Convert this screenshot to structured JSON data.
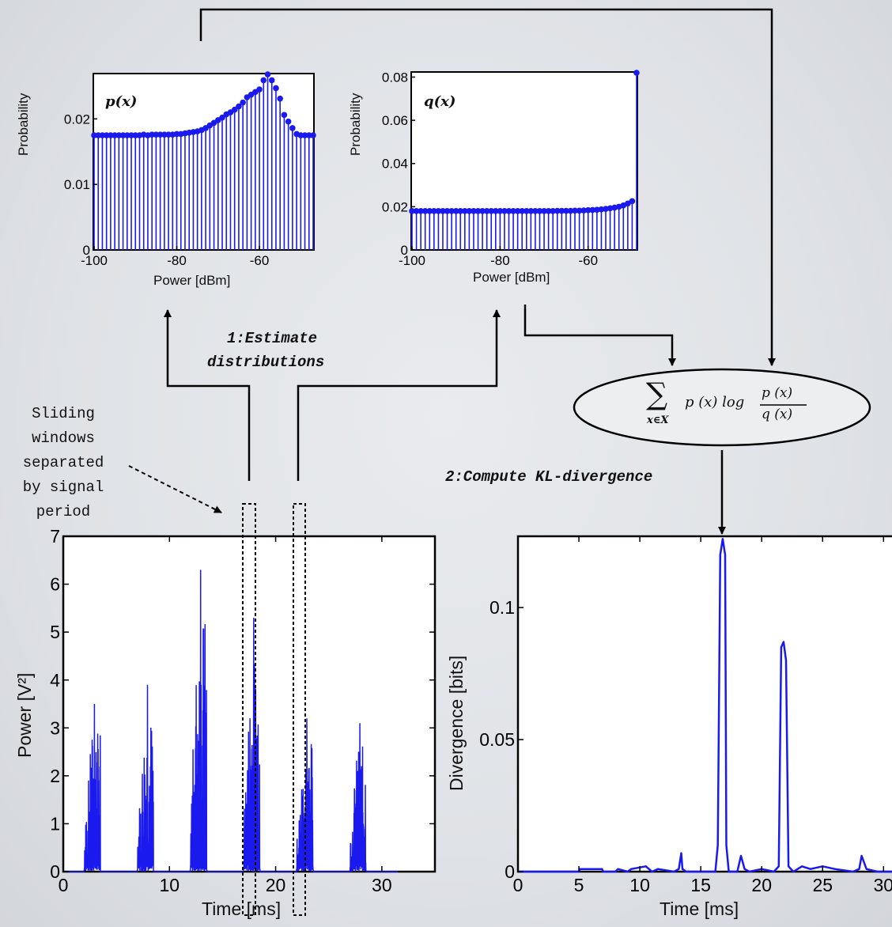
{
  "pdist": {
    "series_label": "p(x)",
    "ylabel": "Probability",
    "xlabel": "Power [dBm]",
    "xticks": [
      "-100",
      "-80",
      "-60"
    ],
    "yticks": [
      "0",
      "0.01",
      "0.02"
    ]
  },
  "qdist": {
    "series_label": "q(x)",
    "ylabel": "Probability",
    "xlabel": "Power [dBm]",
    "xticks": [
      "-100",
      "-80",
      "-60"
    ],
    "yticks": [
      "0",
      "0.02",
      "0.04",
      "0.06",
      "0.08"
    ]
  },
  "signal": {
    "ylabel": "Power [V²]",
    "xlabel": "Time [ms]",
    "xticks": [
      "0",
      "10",
      "20",
      "30"
    ],
    "yticks": [
      "0",
      "1",
      "2",
      "3",
      "4",
      "5",
      "6",
      "7"
    ]
  },
  "divergence": {
    "ylabel": "Divergence [bits]",
    "xlabel": "Time [ms]",
    "xticks": [
      "0",
      "5",
      "10",
      "15",
      "20",
      "25",
      "30"
    ],
    "yticks": [
      "0",
      "0.05",
      "0.1"
    ]
  },
  "steps": {
    "step1_line1": "1:Estimate",
    "step1_line2": "distributions",
    "step2": "2:Compute KL-divergence"
  },
  "annotation": {
    "sliding_windows": "Sliding\nwindows\nseparated\nby signal\nperiod"
  },
  "formula": {
    "sum_index": "x∈X",
    "term": "p (x) log",
    "numerator": "p (x)",
    "denominator": "q (x)"
  },
  "colors": {
    "series": "#1a1aee",
    "axis": "#000000"
  },
  "chart_data": [
    {
      "type": "bar",
      "name": "p(x)",
      "x": [
        -100,
        -99,
        -98,
        -97,
        -96,
        -95,
        -94,
        -93,
        -92,
        -91,
        -90,
        -89,
        -88,
        -87,
        -86,
        -85,
        -84,
        -83,
        -82,
        -81,
        -80,
        -79,
        -78,
        -77,
        -76,
        -75,
        -74,
        -73,
        -72,
        -71,
        -70,
        -69,
        -68,
        -67,
        -66,
        -65,
        -64,
        -63,
        -62,
        -61,
        -60,
        -59,
        -58,
        -57,
        -56,
        -55,
        -54,
        -53,
        -52,
        -51,
        -50,
        -49,
        -48,
        -47
      ],
      "values": [
        0.0175,
        0.0175,
        0.0175,
        0.0175,
        0.0175,
        0.0175,
        0.0175,
        0.0175,
        0.0175,
        0.0175,
        0.0175,
        0.0175,
        0.0176,
        0.0175,
        0.0176,
        0.0176,
        0.0176,
        0.0176,
        0.0176,
        0.0176,
        0.0177,
        0.0177,
        0.0178,
        0.0179,
        0.018,
        0.0181,
        0.0183,
        0.0186,
        0.019,
        0.0194,
        0.0198,
        0.0202,
        0.0207,
        0.021,
        0.0214,
        0.0219,
        0.0225,
        0.0233,
        0.0237,
        0.0241,
        0.0245,
        0.0259,
        0.0268,
        0.0259,
        0.0247,
        0.0231,
        0.0206,
        0.0196,
        0.0186,
        0.0177,
        0.0175,
        0.0175,
        0.0175,
        0.0175
      ],
      "xlabel": "Power [dBm]",
      "ylabel": "Probability",
      "xlim": [
        -100,
        -47
      ],
      "ylim": [
        0,
        0.0268
      ]
    },
    {
      "type": "bar",
      "name": "q(x)",
      "x": [
        -100,
        -99,
        -98,
        -97,
        -96,
        -95,
        -94,
        -93,
        -92,
        -91,
        -90,
        -89,
        -88,
        -87,
        -86,
        -85,
        -84,
        -83,
        -82,
        -81,
        -80,
        -79,
        -78,
        -77,
        -76,
        -75,
        -74,
        -73,
        -72,
        -71,
        -70,
        -69,
        -68,
        -67,
        -66,
        -65,
        -64,
        -63,
        -62,
        -61,
        -60,
        -59,
        -58,
        -57,
        -56,
        -55,
        -54,
        -53,
        -52,
        -51,
        -50,
        -49
      ],
      "values": [
        0.018,
        0.018,
        0.018,
        0.018,
        0.018,
        0.018,
        0.018,
        0.018,
        0.018,
        0.018,
        0.018,
        0.018,
        0.018,
        0.018,
        0.018,
        0.018,
        0.018,
        0.018,
        0.018,
        0.018,
        0.018,
        0.018,
        0.018,
        0.018,
        0.018,
        0.018,
        0.018,
        0.018,
        0.018,
        0.018,
        0.018,
        0.018,
        0.018,
        0.0181,
        0.0181,
        0.0181,
        0.0181,
        0.0182,
        0.0182,
        0.0183,
        0.0184,
        0.0185,
        0.0186,
        0.0188,
        0.019,
        0.0193,
        0.0196,
        0.02,
        0.0206,
        0.0215,
        0.0226,
        0.082
      ],
      "xlabel": "Power [dBm]",
      "ylabel": "Probability",
      "xlim": [
        -100,
        -49
      ],
      "ylim": [
        0,
        0.082
      ]
    },
    {
      "type": "line",
      "name": "Power",
      "bursts_ms": [
        [
          2.0,
          3.5,
          3.5
        ],
        [
          7.0,
          8.5,
          3.9
        ],
        [
          12.0,
          13.5,
          6.3
        ],
        [
          17.0,
          18.5,
          5.3
        ],
        [
          22.0,
          23.5,
          3.2
        ],
        [
          27.0,
          28.5,
          3.1
        ]
      ],
      "xlabel": "Time [ms]",
      "ylabel": "Power [V²]",
      "xlim": [
        0,
        35
      ],
      "ylim": [
        0,
        7
      ]
    },
    {
      "type": "line",
      "name": "Divergence",
      "x": [
        0,
        5,
        5.1,
        6.9,
        7,
        8,
        8.2,
        9,
        9.3,
        10.5,
        11,
        11.5,
        12.8,
        13.2,
        13.4,
        13.5,
        13.8,
        14.5,
        16.2,
        16.4,
        16.6,
        16.8,
        17.0,
        17.1,
        17.3,
        18,
        18.3,
        18.6,
        19,
        20,
        21,
        21.4,
        21.6,
        21.8,
        22.0,
        22.2,
        22.6,
        23.3,
        24,
        25,
        26,
        27.5,
        28,
        28.2,
        28.6,
        29.5,
        30,
        31
      ],
      "y": [
        0,
        0,
        0.001,
        0.001,
        0,
        0,
        0.001,
        0,
        0.001,
        0.002,
        0,
        0.001,
        0,
        0.001,
        0.007,
        0.001,
        0,
        0,
        0,
        0.01,
        0.12,
        0.126,
        0.12,
        0.01,
        0,
        0,
        0.006,
        0.001,
        0,
        0.001,
        0,
        0.002,
        0.085,
        0.087,
        0.08,
        0.002,
        0,
        0.002,
        0.001,
        0.002,
        0.001,
        0,
        0.001,
        0.006,
        0.001,
        0,
        0,
        0
      ],
      "xlabel": "Time [ms]",
      "ylabel": "Divergence [bits]",
      "xlim": [
        0,
        31
      ],
      "ylim": [
        0,
        0.127
      ]
    }
  ]
}
